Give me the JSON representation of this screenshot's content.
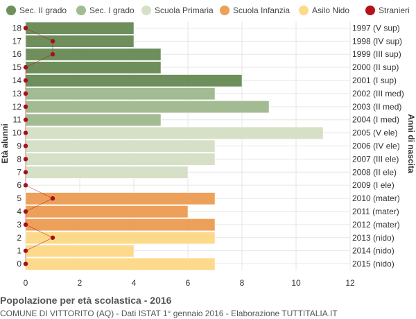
{
  "chart_data": {
    "type": "bar",
    "orientation": "horizontal",
    "title": "Popolazione per età scolastica - 2016",
    "subtitle": "COMUNE DI VITTORITO (AQ) - Dati ISTAT 1° gennaio 2016 - Elaborazione TUTTITALIA.IT",
    "ylabel": "Età alunni",
    "ylabel_right": "Anni di nascita",
    "xlim": [
      0,
      12
    ],
    "xticks": [
      "0",
      "2",
      "4",
      "6",
      "8",
      "10",
      "12"
    ],
    "grid": true,
    "legend_position": "top",
    "legend": [
      {
        "name": "Sec. II grado",
        "color": "#6e8f5c"
      },
      {
        "name": "Sec. I grado",
        "color": "#a2bb92"
      },
      {
        "name": "Scuola Primaria",
        "color": "#d5e0c6"
      },
      {
        "name": "Scuola Infanzia",
        "color": "#eda05a"
      },
      {
        "name": "Asilo Nido",
        "color": "#fdd98c"
      },
      {
        "name": "Stranieri",
        "color": "#b5121b"
      }
    ],
    "ages": [
      "18",
      "17",
      "16",
      "15",
      "14",
      "13",
      "12",
      "11",
      "10",
      "9",
      "8",
      "7",
      "6",
      "5",
      "4",
      "3",
      "2",
      "1",
      "0"
    ],
    "birth_years": [
      "1997 (V sup)",
      "1998 (IV sup)",
      "1999 (III sup)",
      "2000 (II sup)",
      "2001 (I sup)",
      "2002 (III med)",
      "2003 (II med)",
      "2004 (I med)",
      "2005 (V ele)",
      "2006 (IV ele)",
      "2007 (III ele)",
      "2008 (II ele)",
      "2009 (I ele)",
      "2010 (mater)",
      "2011 (mater)",
      "2012 (mater)",
      "2013 (nido)",
      "2014 (nido)",
      "2015 (nido)"
    ],
    "values": [
      4,
      4,
      5,
      5,
      8,
      7,
      9,
      5,
      11,
      7,
      7,
      6,
      0,
      7,
      6,
      7,
      7,
      4,
      7
    ],
    "categories": [
      "Sec. II grado",
      "Sec. II grado",
      "Sec. II grado",
      "Sec. II grado",
      "Sec. II grado",
      "Sec. I grado",
      "Sec. I grado",
      "Sec. I grado",
      "Scuola Primaria",
      "Scuola Primaria",
      "Scuola Primaria",
      "Scuola Primaria",
      "Scuola Primaria",
      "Scuola Infanzia",
      "Scuola Infanzia",
      "Scuola Infanzia",
      "Asilo Nido",
      "Asilo Nido",
      "Asilo Nido"
    ],
    "stranieri": [
      0,
      1,
      1,
      0,
      0,
      0,
      0,
      0,
      0,
      0,
      0,
      0,
      0,
      1,
      0,
      0,
      1,
      0,
      0
    ]
  }
}
